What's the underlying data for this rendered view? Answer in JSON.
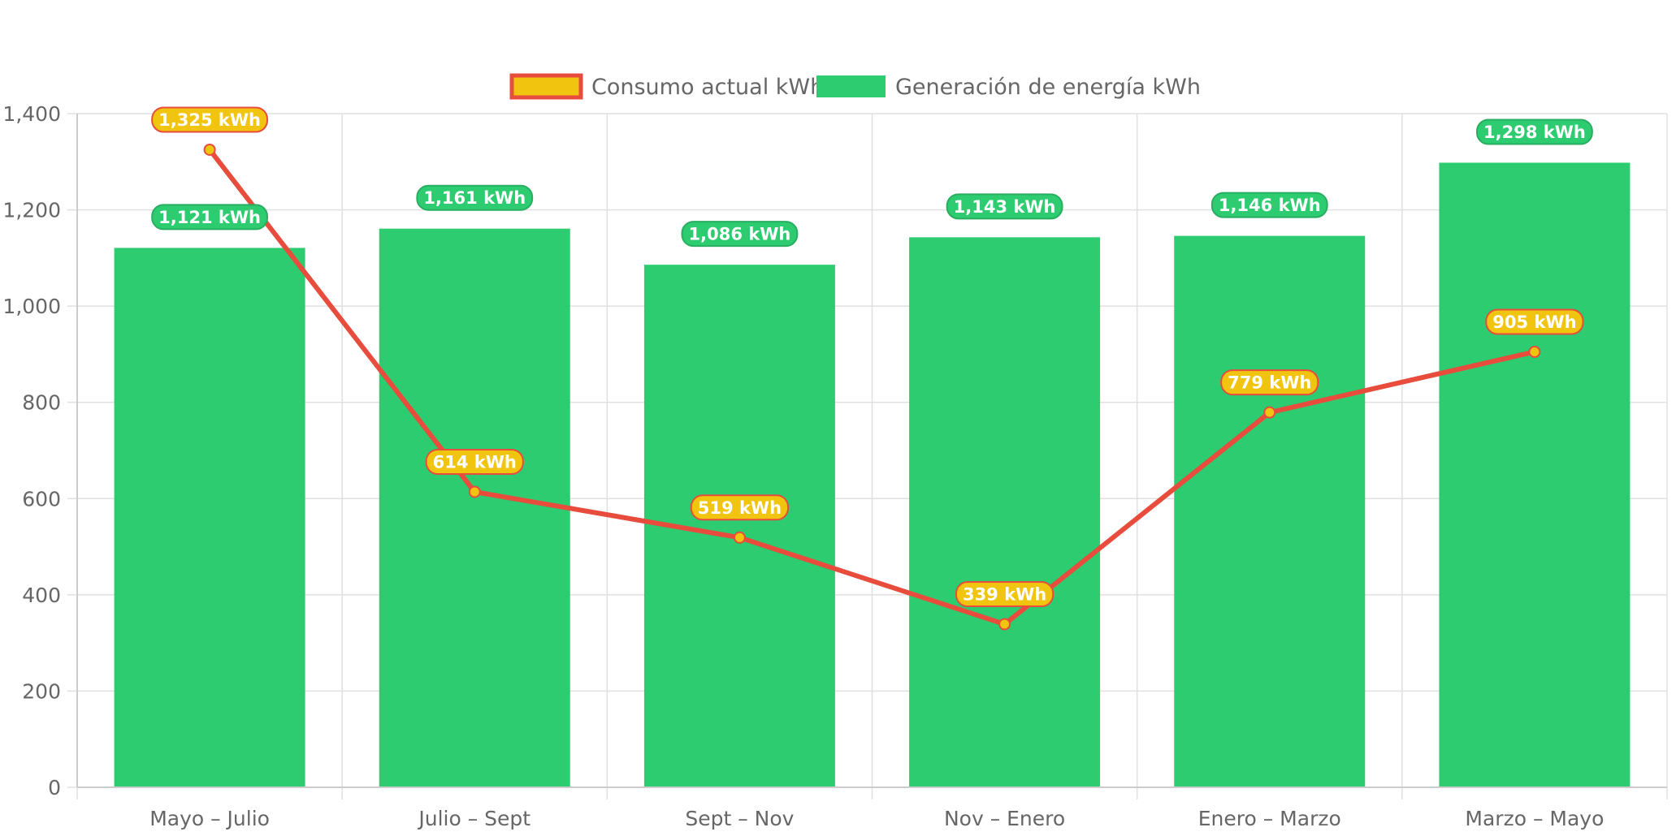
{
  "chart_data": {
    "type": "bar",
    "title": "",
    "xlabel": "",
    "ylabel": "",
    "categories": [
      "Mayo – Julio",
      "Julio – Sept",
      "Sept – Nov",
      "Nov – Enero",
      "Enero – Marzo",
      "Marzo – Mayo"
    ],
    "ylim": [
      0,
      1400
    ],
    "yticks": [
      0,
      200,
      400,
      600,
      800,
      1000,
      1200,
      1400
    ],
    "ytick_labels": [
      "0",
      "200",
      "400",
      "600",
      "800",
      "1,000",
      "1,200",
      "1,400"
    ],
    "grid": true,
    "legend_position": "top-center",
    "series": [
      {
        "name": "Consumo actual kWh",
        "type": "line",
        "values": [
          1325,
          614,
          519,
          339,
          779,
          905
        ],
        "labels": [
          "1,325 kWh",
          "614 kWh",
          "519 kWh",
          "339 kWh",
          "779 kWh",
          "905 kWh"
        ],
        "line_color": "#e74c3c",
        "fill_color": "#f1c40f"
      },
      {
        "name": "Generación de energía kWh",
        "type": "bar",
        "values": [
          1121,
          1161,
          1086,
          1143,
          1146,
          1298
        ],
        "labels": [
          "1,121 kWh",
          "1,161 kWh",
          "1,086 kWh",
          "1,143 kWh",
          "1,146 kWh",
          "1,298 kWh"
        ],
        "bar_color": "#2ecc71",
        "label_border_color": "#27ae60"
      }
    ]
  },
  "colors": {
    "grid": "#e0e0e0",
    "axis": "#cccccc",
    "tick_text": "#666666"
  }
}
